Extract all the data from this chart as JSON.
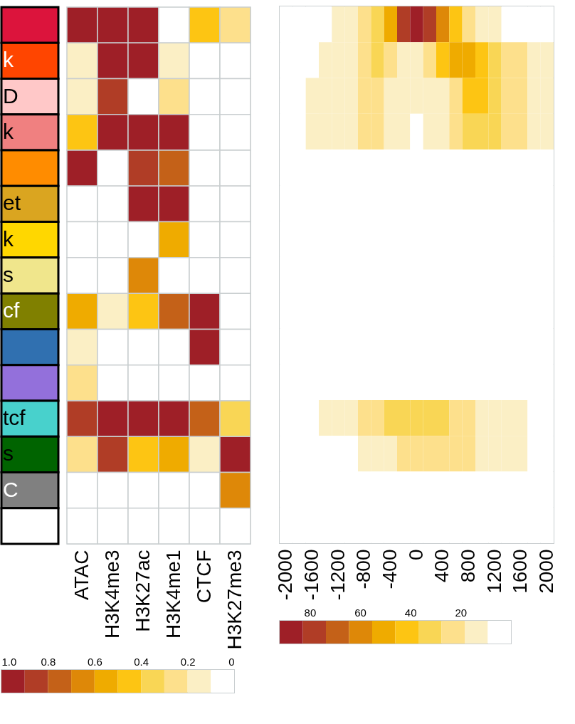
{
  "chart_data": [
    {
      "type": "heatmap",
      "categories": [
        "ATAC",
        "H3K4me3",
        "H3K27ac",
        "H3K4me1",
        "CTCF",
        "H3K27me3"
      ],
      "y_categories": [
        null,
        "k",
        "D",
        "k",
        null,
        "et",
        "k",
        "s",
        "cf",
        null,
        null,
        "tcf",
        "s",
        "C",
        null
      ],
      "colors": [
        "#dc143c",
        "#ff4500",
        "#ffc8c8",
        "#f08080",
        "#ff8c00",
        "#daa520",
        "#ffd700",
        "#f0e68c",
        "#808000",
        "#3070b0",
        "#9370db",
        "#48d1cc",
        "#006400",
        "#808080",
        "#ffffff"
      ],
      "clim": [
        1,
        0
      ],
      "cticks": [
        {
          "value": 1,
          "label": "1.0"
        },
        0.8,
        0.6,
        0.4,
        0.2,
        0
      ],
      "cells": [
        [
          0.95,
          0.95,
          0.95,
          0,
          0.45,
          0.25
        ],
        [
          0.15,
          0.95,
          0.95,
          0.15,
          0,
          0
        ],
        [
          0.15,
          0.85,
          0,
          0.25,
          0,
          0
        ],
        [
          0.45,
          0.95,
          0.95,
          0.95,
          0,
          0
        ],
        [
          0.95,
          0,
          0.85,
          0.75,
          0,
          0
        ],
        [
          0,
          0,
          0.95,
          0.95,
          0,
          0
        ],
        [
          0,
          0,
          0,
          0.55,
          0,
          0
        ],
        [
          0,
          0,
          0.65,
          0,
          0,
          0
        ],
        [
          0.55,
          0.15,
          0.45,
          0.75,
          0.95,
          0
        ],
        [
          0.15,
          0,
          0,
          0,
          0.95,
          0
        ],
        [
          0.25,
          0,
          0,
          0,
          0,
          0
        ],
        [
          0.85,
          0.95,
          0.95,
          0.95,
          0.75,
          0.35
        ],
        [
          0.25,
          0.85,
          0.45,
          0.55,
          0.15,
          0.95
        ],
        [
          0,
          0,
          0,
          0,
          0,
          0.65
        ],
        [
          0,
          0,
          0,
          0,
          0,
          0
        ]
      ]
    },
    {
      "type": "heatmap",
      "categories": [
        "-2000",
        null,
        "-1600",
        null,
        "-1200",
        null,
        "-800",
        null,
        "-400",
        null,
        "0",
        null,
        "400",
        null,
        "800",
        null,
        "1200",
        null,
        "1600",
        null,
        "2000"
      ],
      "y_categories": [
        null,
        null,
        null,
        null,
        null,
        null,
        null,
        null,
        null,
        null,
        null,
        null,
        null,
        null,
        null
      ],
      "colors": [
        "#ffffff",
        "#fbefc5",
        "#fde08c",
        "#f9d655",
        "#fdc513",
        "#efab00",
        "#de8808",
        "#c46118",
        "#b03d26",
        "#9e1f27"
      ],
      "clim": [
        92,
        0
      ],
      "cticks": [
        80,
        60,
        40,
        20
      ],
      "cells": [
        [
          0,
          0,
          0,
          0,
          14,
          14,
          23,
          32,
          51,
          78,
          87,
          78,
          60,
          41,
          23,
          14,
          14,
          0,
          0,
          0,
          0
        ],
        [
          0,
          0,
          0,
          14,
          14,
          14,
          23,
          32,
          23,
          14,
          14,
          23,
          41,
          51,
          51,
          41,
          32,
          23,
          23,
          14,
          14
        ],
        [
          0,
          0,
          14,
          14,
          14,
          14,
          23,
          23,
          14,
          14,
          14,
          14,
          14,
          23,
          41,
          41,
          32,
          23,
          23,
          14,
          14
        ],
        [
          0,
          0,
          14,
          14,
          14,
          14,
          23,
          23,
          14,
          14,
          0,
          14,
          14,
          23,
          32,
          32,
          32,
          23,
          23,
          14,
          14
        ],
        [
          0,
          0,
          0,
          0,
          0,
          0,
          0,
          0,
          0,
          0,
          0,
          0,
          0,
          0,
          0,
          0,
          0,
          0,
          0,
          0,
          0
        ],
        [
          0,
          0,
          0,
          0,
          0,
          0,
          0,
          0,
          0,
          0,
          0,
          0,
          0,
          0,
          0,
          0,
          0,
          0,
          0,
          0,
          0
        ],
        [
          0,
          0,
          0,
          0,
          0,
          0,
          0,
          0,
          0,
          0,
          0,
          0,
          0,
          0,
          0,
          0,
          0,
          0,
          0,
          0,
          0
        ],
        [
          0,
          0,
          0,
          0,
          0,
          0,
          0,
          0,
          0,
          0,
          0,
          0,
          0,
          0,
          0,
          0,
          0,
          0,
          0,
          0,
          0
        ],
        [
          0,
          0,
          0,
          0,
          0,
          0,
          0,
          0,
          0,
          0,
          0,
          0,
          0,
          0,
          0,
          0,
          0,
          0,
          0,
          0,
          0
        ],
        [
          0,
          0,
          0,
          0,
          0,
          0,
          0,
          0,
          0,
          0,
          0,
          0,
          0,
          0,
          0,
          0,
          0,
          0,
          0,
          0,
          0
        ],
        [
          0,
          0,
          0,
          0,
          0,
          0,
          0,
          0,
          0,
          0,
          0,
          0,
          0,
          0,
          0,
          0,
          0,
          0,
          0,
          0,
          0
        ],
        [
          0,
          0,
          0,
          14,
          14,
          14,
          23,
          23,
          32,
          32,
          32,
          32,
          32,
          23,
          23,
          14,
          14,
          14,
          14,
          0,
          0
        ],
        [
          0,
          0,
          0,
          0,
          0,
          0,
          14,
          14,
          14,
          23,
          23,
          23,
          23,
          23,
          23,
          14,
          14,
          14,
          14,
          0,
          0
        ],
        [
          0,
          0,
          0,
          0,
          0,
          0,
          0,
          0,
          0,
          0,
          0,
          0,
          0,
          0,
          0,
          0,
          0,
          0,
          0,
          0,
          0
        ],
        [
          0,
          0,
          0,
          0,
          0,
          0,
          0,
          0,
          0,
          0,
          0,
          0,
          0,
          0,
          0,
          0,
          0,
          0,
          0,
          0,
          0
        ]
      ]
    }
  ]
}
